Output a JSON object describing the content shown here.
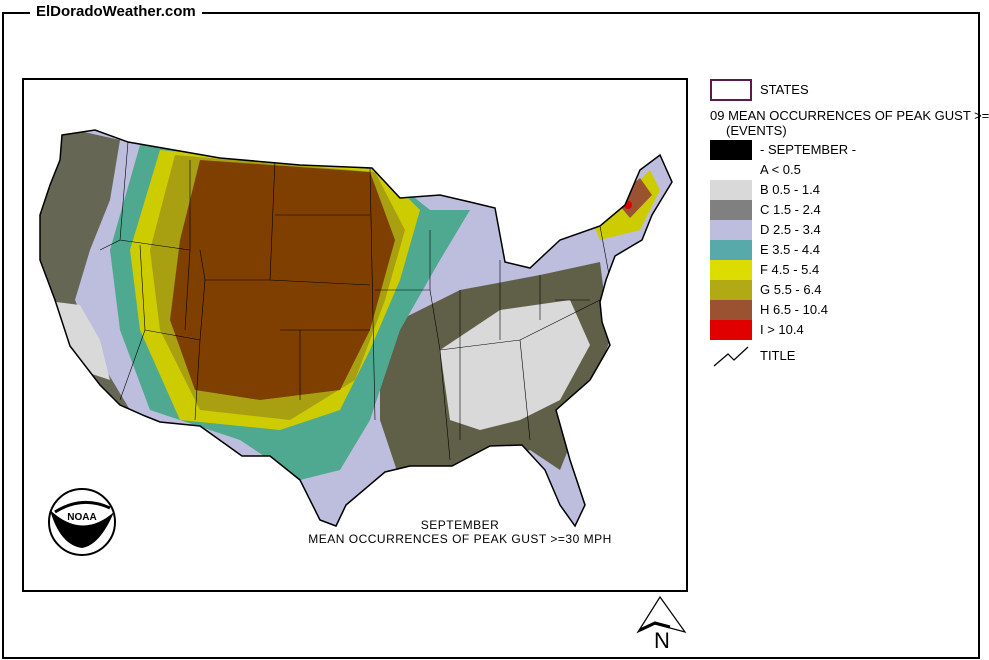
{
  "site": {
    "title": "ElDoradoWeather.com"
  },
  "map": {
    "caption_month": "SEPTEMBER",
    "caption_title": "MEAN OCCURRENCES OF PEAK GUST >=30 MPH",
    "logo_text": "NOAA",
    "north_label": "N"
  },
  "legend": {
    "states_label": "STATES",
    "layer_title": "09 MEAN OCCURRENCES OF PEAK GUST >=",
    "layer_units": "(EVENTS)",
    "month_label": "- SEPTEMBER -",
    "classes": [
      {
        "label": "A < 0.5",
        "color": "#ffffff"
      },
      {
        "label": "B 0.5 - 1.4",
        "color": "#d9d9d9"
      },
      {
        "label": "C 1.5 - 2.4",
        "color": "#808080"
      },
      {
        "label": "D 2.5 - 3.4",
        "color": "#bdbddd"
      },
      {
        "label": "E 3.5 - 4.4",
        "color": "#58aaaa"
      },
      {
        "label": "F 4.5 - 5.4",
        "color": "#dcdc00"
      },
      {
        "label": "G 5.5 - 6.4",
        "color": "#b2aa14"
      },
      {
        "label": "H 6.5 - 10.4",
        "color": "#9a5230"
      },
      {
        "label": "I > 10.4",
        "color": "#e00000"
      }
    ],
    "title_label": "TITLE"
  }
}
